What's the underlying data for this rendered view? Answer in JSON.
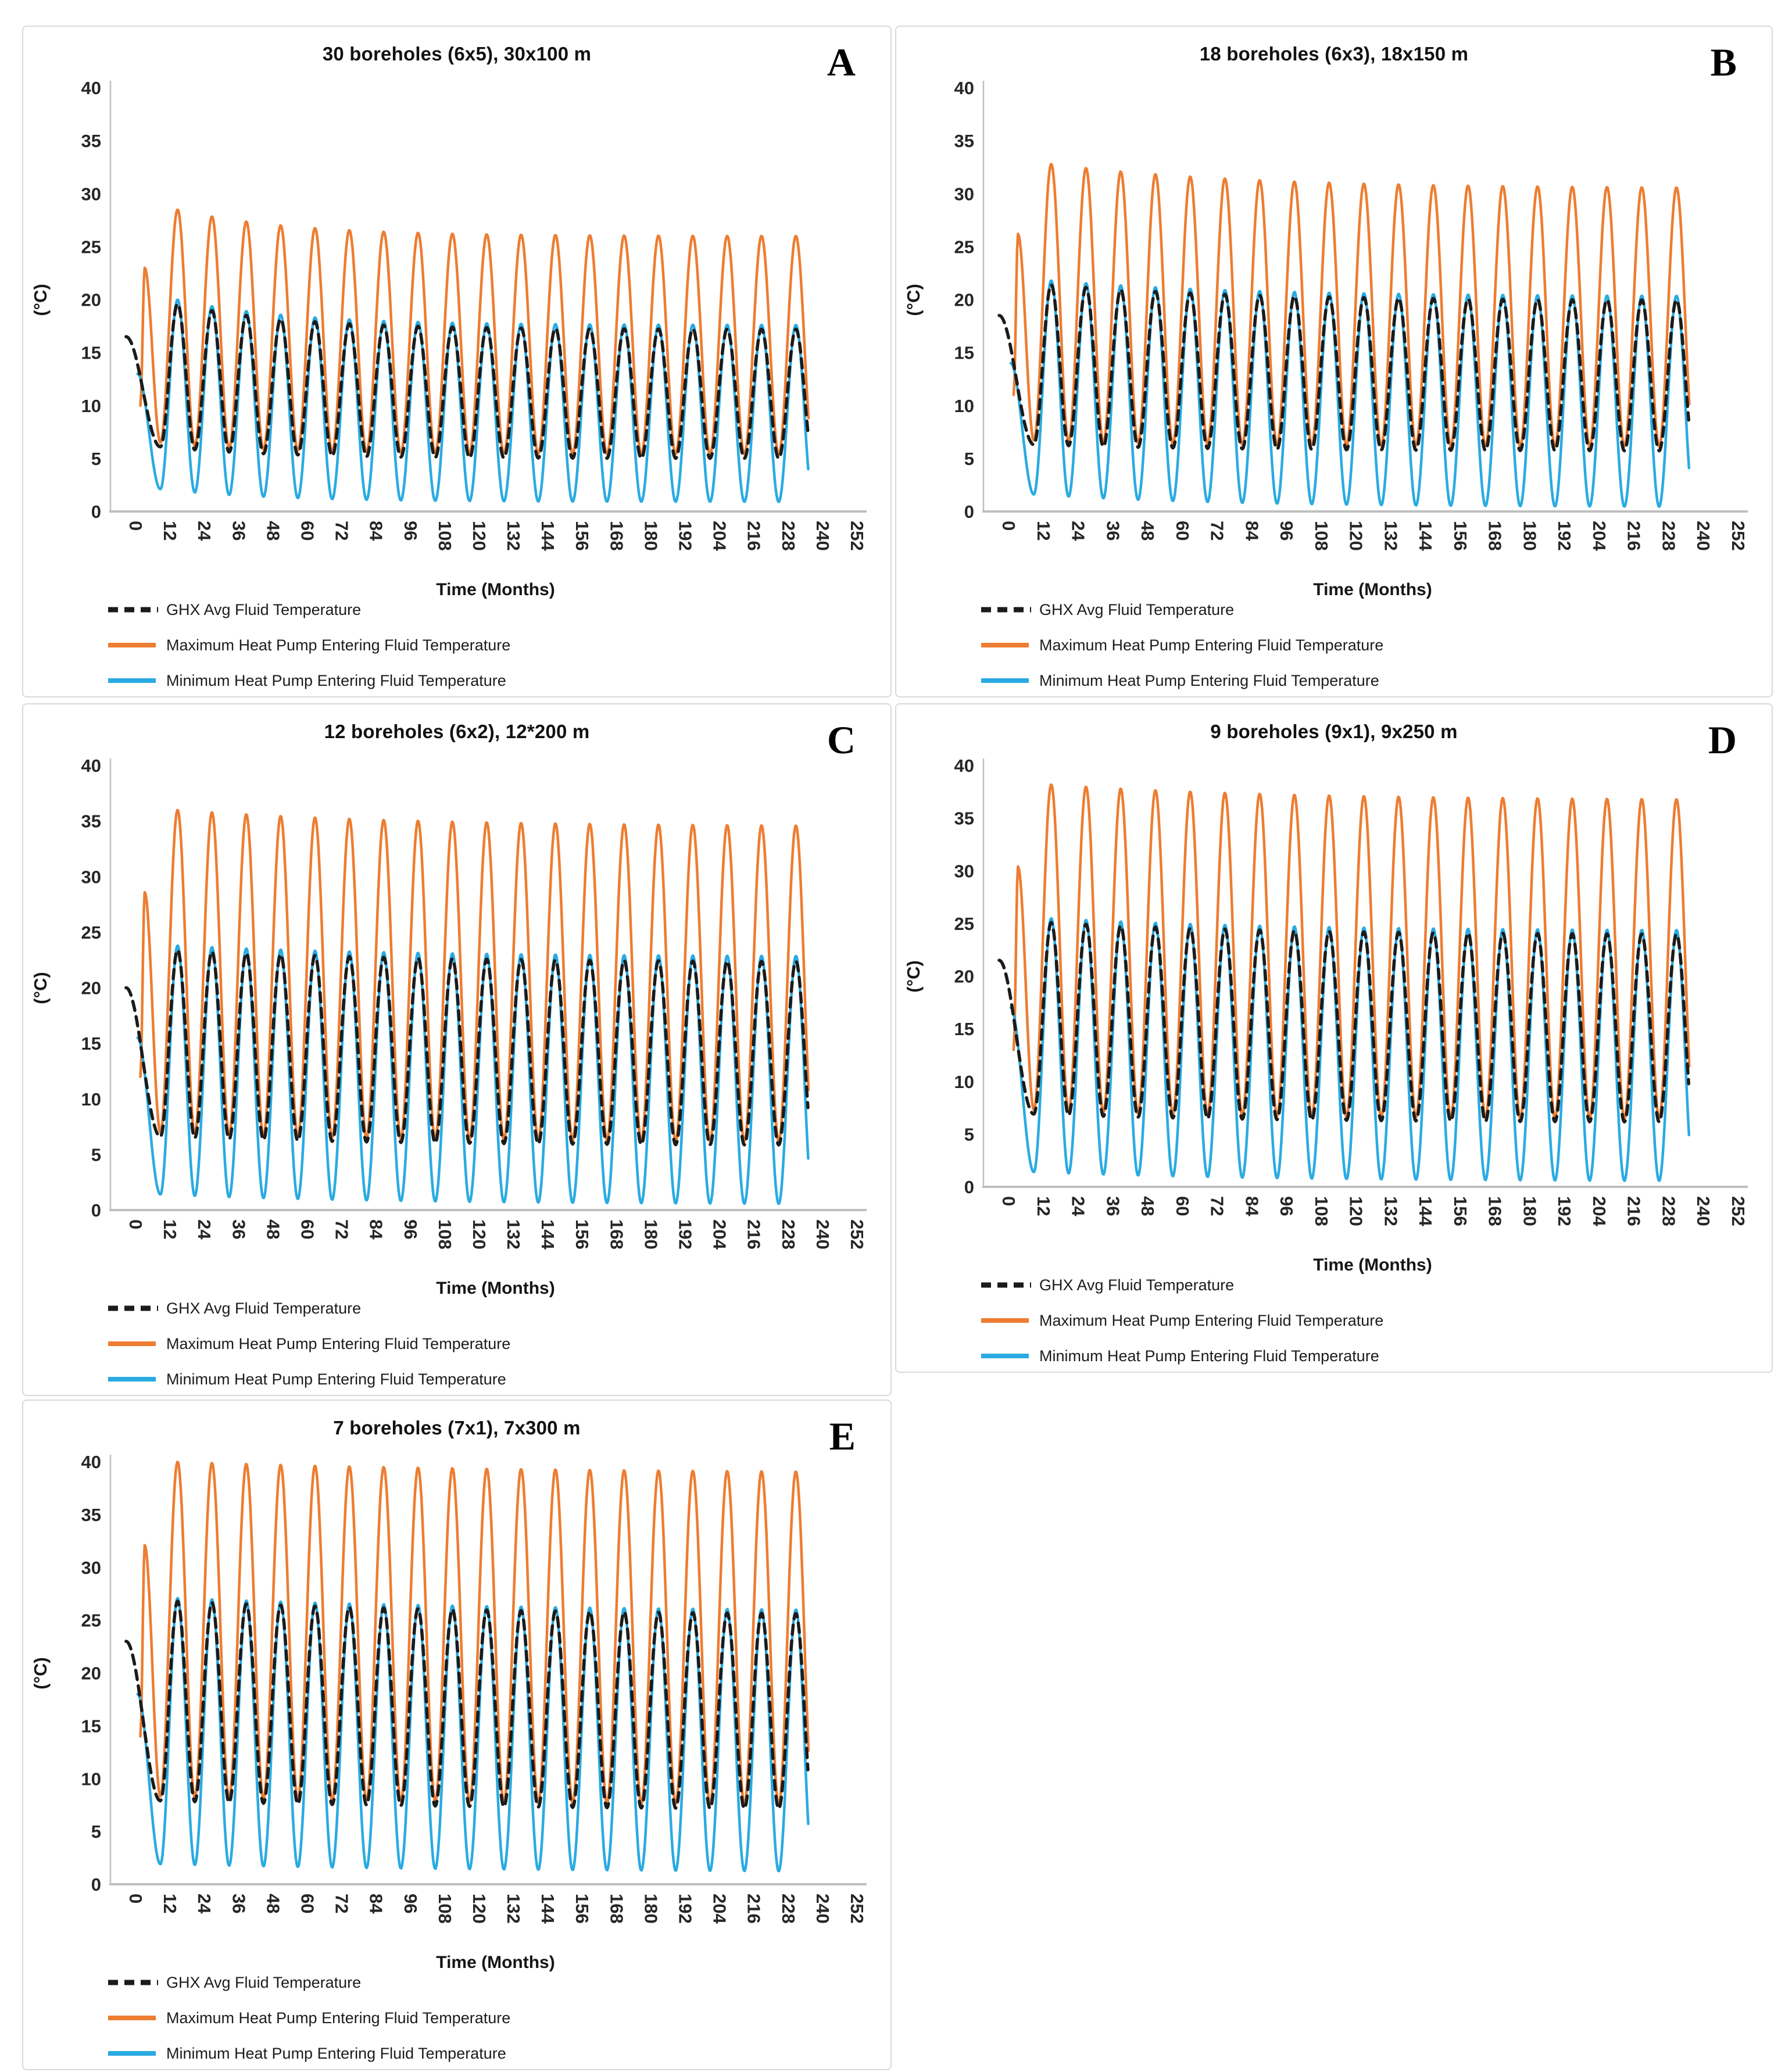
{
  "figure": {
    "description": "Five line charts (A-E) of ground heat exchanger fluid temperatures over 240 months for different borehole field configurations",
    "background": "#ffffff",
    "panel_border": "#d9d9d9"
  },
  "colors": {
    "max_line": "#ED7D31",
    "min_line": "#29ABE2",
    "avg_line": "#1b1b1b",
    "axis_line": "#bfbfbf",
    "tick_text": "#262626"
  },
  "axes": {
    "x_title": "Time (Months)",
    "y_title": "(°C)",
    "y_min": 0,
    "y_max": 40,
    "y_tick_step": 5,
    "y_ticks": [
      0,
      5,
      10,
      15,
      20,
      25,
      30,
      35,
      40
    ],
    "x_ticks": [
      0,
      12,
      24,
      36,
      48,
      60,
      72,
      84,
      96,
      108,
      120,
      132,
      144,
      156,
      168,
      180,
      192,
      204,
      216,
      228,
      240,
      252
    ],
    "x_max_month": 252,
    "grid": "off",
    "legend_position": "below-left"
  },
  "legend": [
    {
      "series_key": "avg",
      "marker": "black-dashed-line",
      "label": "GHX Avg Fluid Temperature"
    },
    {
      "series_key": "max",
      "marker": "orange-solid-line",
      "label": "Maximum Heat Pump Entering Fluid Temperature"
    },
    {
      "series_key": "min",
      "marker": "blue-solid-line",
      "label": "Minimum Heat Pump Entering Fluid Temperature"
    }
  ],
  "phase": {
    "period_months": 12,
    "first_trough_month": 13,
    "first_peak_month": 19,
    "cycles": 19,
    "tail_trough_month": 241,
    "end_month": 239.5
  },
  "chart_data": [
    {
      "type": "line",
      "letter": "A",
      "title": "30 boreholes (6x5), 30x100 m",
      "xlabel": "Time (Months)",
      "ylabel": "(°C)",
      "ylim": [
        0,
        40
      ],
      "xlim": [
        0,
        252
      ],
      "envelope_decay": 0.3,
      "series": [
        {
          "key": "avg",
          "name": "GHX Avg Fluid Temperature",
          "lead_points": [
            [
              1,
              16.5
            ]
          ],
          "annual_peak_first": 19.6,
          "annual_peak_last": 17.2,
          "annual_trough_first": 6.1,
          "annual_trough_last": 5.0
        },
        {
          "key": "max",
          "name": "Maximum Heat Pump Entering Fluid Temperature",
          "lead_points": [
            [
              6,
              10
            ],
            [
              7.5,
              23.0
            ]
          ],
          "annual_peak_first": 28.5,
          "annual_peak_last": 26.0,
          "annual_trough_first": 6.5,
          "annual_trough_last": 5.4
        },
        {
          "key": "min",
          "name": "Minimum Heat Pump Entering Fluid Temperature",
          "lead_points": [
            [
              5,
              13.0
            ]
          ],
          "annual_peak_first": 20.0,
          "annual_peak_last": 17.6,
          "annual_trough_first": 2.1,
          "annual_trough_last": 0.9
        }
      ]
    },
    {
      "type": "line",
      "letter": "B",
      "title": "18 boreholes (6x3), 18x150 m",
      "xlabel": "Time (Months)",
      "ylabel": "(°C)",
      "ylim": [
        0,
        40
      ],
      "xlim": [
        0,
        252
      ],
      "envelope_decay": 0.18,
      "series": [
        {
          "key": "avg",
          "name": "GHX Avg Fluid Temperature",
          "lead_points": [
            [
              1,
              18.5
            ]
          ],
          "annual_peak_first": 21.4,
          "annual_peak_last": 19.9,
          "annual_trough_first": 6.3,
          "annual_trough_last": 5.7
        },
        {
          "key": "max",
          "name": "Maximum Heat Pump Entering Fluid Temperature",
          "lead_points": [
            [
              6,
              11
            ],
            [
              7.5,
              26.2
            ]
          ],
          "annual_peak_first": 32.8,
          "annual_peak_last": 30.5,
          "annual_trough_first": 6.7,
          "annual_trough_last": 6.1
        },
        {
          "key": "min",
          "name": "Minimum Heat Pump Entering Fluid Temperature",
          "lead_points": [
            [
              5,
              14.0
            ]
          ],
          "annual_peak_first": 21.8,
          "annual_peak_last": 20.3,
          "annual_trough_first": 1.6,
          "annual_trough_last": 0.4
        }
      ]
    },
    {
      "type": "line",
      "letter": "C",
      "title": "12 boreholes (6x2), 12*200 m",
      "xlabel": "Time (Months)",
      "ylabel": "(°C)",
      "ylim": [
        0,
        40
      ],
      "xlim": [
        0,
        252
      ],
      "envelope_decay": 0.15,
      "series": [
        {
          "key": "avg",
          "name": "GHX Avg Fluid Temperature",
          "lead_points": [
            [
              1,
              20.0
            ]
          ],
          "annual_peak_first": 23.4,
          "annual_peak_last": 22.3,
          "annual_trough_first": 6.6,
          "annual_trough_last": 5.8
        },
        {
          "key": "max",
          "name": "Maximum Heat Pump Entering Fluid Temperature",
          "lead_points": [
            [
              6,
              12
            ],
            [
              7.5,
              28.6
            ]
          ],
          "annual_peak_first": 36.0,
          "annual_peak_last": 34.5,
          "annual_trough_first": 7.0,
          "annual_trough_last": 6.1
        },
        {
          "key": "min",
          "name": "Minimum Heat Pump Entering Fluid Temperature",
          "lead_points": [
            [
              5,
              15.5
            ]
          ],
          "annual_peak_first": 23.8,
          "annual_peak_last": 22.8,
          "annual_trough_first": 1.4,
          "annual_trough_last": 0.5
        }
      ]
    },
    {
      "type": "line",
      "letter": "D",
      "title": "9 boreholes (9x1), 9x250 m",
      "xlabel": "Time (Months)",
      "ylabel": "(°C)",
      "ylim": [
        0,
        40
      ],
      "xlim": [
        0,
        252
      ],
      "envelope_decay": 0.15,
      "series": [
        {
          "key": "avg",
          "name": "GHX Avg Fluid Temperature",
          "lead_points": [
            [
              1,
              21.5
            ]
          ],
          "annual_peak_first": 25.1,
          "annual_peak_last": 23.9,
          "annual_trough_first": 6.9,
          "annual_trough_last": 6.1
        },
        {
          "key": "max",
          "name": "Maximum Heat Pump Entering Fluid Temperature",
          "lead_points": [
            [
              6,
              13
            ],
            [
              7.5,
              30.4
            ]
          ],
          "annual_peak_first": 38.2,
          "annual_peak_last": 36.7,
          "annual_trough_first": 7.3,
          "annual_trough_last": 6.4
        },
        {
          "key": "min",
          "name": "Minimum Heat Pump Entering Fluid Temperature",
          "lead_points": [
            [
              5,
              17.0
            ]
          ],
          "annual_peak_first": 25.5,
          "annual_peak_last": 24.3,
          "annual_trough_first": 1.4,
          "annual_trough_last": 0.5
        }
      ]
    },
    {
      "type": "line",
      "letter": "E",
      "title": "7 boreholes (7x1), 7x300 m",
      "xlabel": "Time (Months)",
      "ylabel": "(°C)",
      "ylim": [
        0,
        40
      ],
      "xlim": [
        0,
        252
      ],
      "envelope_decay": 0.1,
      "series": [
        {
          "key": "avg",
          "name": "GHX Avg Fluid Temperature",
          "lead_points": [
            [
              1,
              23.0
            ]
          ],
          "annual_peak_first": 26.8,
          "annual_peak_last": 25.4,
          "annual_trough_first": 7.9,
          "annual_trough_last": 7.0
        },
        {
          "key": "max",
          "name": "Maximum Heat Pump Entering Fluid Temperature",
          "lead_points": [
            [
              6,
              14
            ],
            [
              7.5,
              32.1
            ]
          ],
          "annual_peak_first": 40.0,
          "annual_peak_last": 38.9,
          "annual_trough_first": 8.3,
          "annual_trough_last": 7.4
        },
        {
          "key": "min",
          "name": "Minimum Heat Pump Entering Fluid Temperature",
          "lead_points": [
            [
              5,
              18.0
            ]
          ],
          "annual_peak_first": 27.1,
          "annual_peak_last": 25.8,
          "annual_trough_first": 1.9,
          "annual_trough_last": 1.1
        }
      ]
    }
  ]
}
